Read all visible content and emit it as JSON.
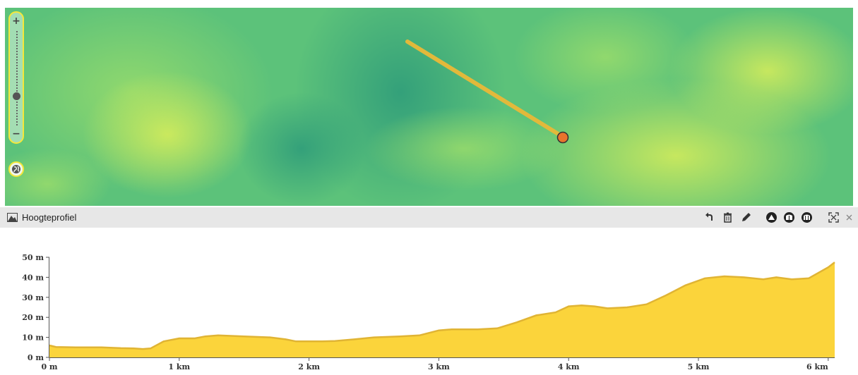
{
  "map": {
    "zoom_in_label": "+",
    "zoom_out_label": "−",
    "zoom_level_fraction": 0.35,
    "route_color": "#e2b93b",
    "marker_color": "#e8742c"
  },
  "panel": {
    "title": "Hoogteprofiel",
    "tools": [
      "undo-icon",
      "trash-icon",
      "pencil-icon",
      "profile-mode-1-icon",
      "profile-mode-2-icon",
      "profile-mode-3-icon",
      "fullscreen-icon",
      "close-icon"
    ],
    "close_label": "×"
  },
  "chart_data": {
    "type": "area",
    "fill_color": "#fbd43b",
    "line_color": "#e0b434",
    "x_unit": "km",
    "y_unit": "m",
    "xlim": [
      0,
      6.05
    ],
    "ylim": [
      0,
      50
    ],
    "x_ticks": [
      "0 m",
      "1 km",
      "2 km",
      "3 km",
      "4 km",
      "5 km",
      "6 km"
    ],
    "y_ticks": [
      "0 m",
      "10 m",
      "20 m",
      "30 m",
      "40 m",
      "50 m"
    ],
    "x": [
      0,
      0.05,
      0.2,
      0.4,
      0.55,
      0.65,
      0.72,
      0.78,
      0.88,
      1.0,
      1.12,
      1.2,
      1.3,
      1.5,
      1.7,
      1.82,
      1.9,
      2.0,
      2.1,
      2.2,
      2.35,
      2.5,
      2.7,
      2.85,
      3.0,
      3.1,
      3.3,
      3.45,
      3.6,
      3.75,
      3.9,
      4.0,
      4.1,
      4.2,
      4.3,
      4.45,
      4.6,
      4.75,
      4.9,
      5.05,
      5.2,
      5.35,
      5.5,
      5.6,
      5.72,
      5.85,
      6.0,
      6.05
    ],
    "y": [
      6,
      5.2,
      5,
      5,
      4.6,
      4.5,
      4.2,
      4.5,
      8,
      9.5,
      9.5,
      10.5,
      11,
      10.5,
      10,
      9,
      8,
      8,
      8,
      8.2,
      9,
      10,
      10.5,
      11,
      13.5,
      14,
      14,
      14.5,
      17.5,
      21,
      22.5,
      25.5,
      26,
      25.5,
      24.5,
      25,
      26.5,
      31,
      36,
      39.5,
      40.5,
      40,
      39,
      40,
      39,
      39.5,
      45,
      47.5
    ]
  }
}
